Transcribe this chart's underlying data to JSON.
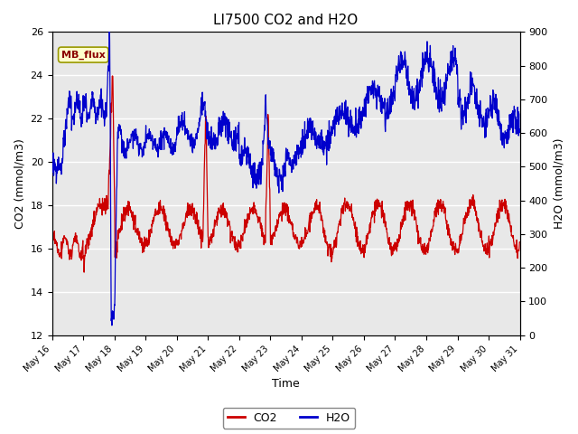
{
  "title": "LI7500 CO2 and H2O",
  "xlabel": "Time",
  "ylabel_left": "CO2 (mmol/m3)",
  "ylabel_right": "H2O (mmol/m3)",
  "ylim_left": [
    12,
    26
  ],
  "ylim_right": [
    0,
    900
  ],
  "yticks_left": [
    12,
    14,
    16,
    18,
    20,
    22,
    24,
    26
  ],
  "yticks_right": [
    0,
    100,
    200,
    300,
    400,
    500,
    600,
    700,
    800,
    900
  ],
  "co2_color": "#cc0000",
  "h2o_color": "#0000cc",
  "fig_facecolor": "#ffffff",
  "plot_facecolor": "#e8e8e8",
  "grid_color": "#ffffff",
  "annotation_text": "MB_flux",
  "legend_co2": "CO2",
  "legend_h2o": "H2O",
  "title_fontsize": 11,
  "axis_fontsize": 9,
  "tick_fontsize": 8,
  "xtick_labels": [
    "May 16",
    "May 17",
    "May 18",
    "May 19",
    "May 20",
    "May 21",
    "May 22",
    "May 23",
    "May 24",
    "May 25",
    "May 26",
    "May 27",
    "May 28",
    "May 29",
    "May 30",
    "May 31"
  ]
}
